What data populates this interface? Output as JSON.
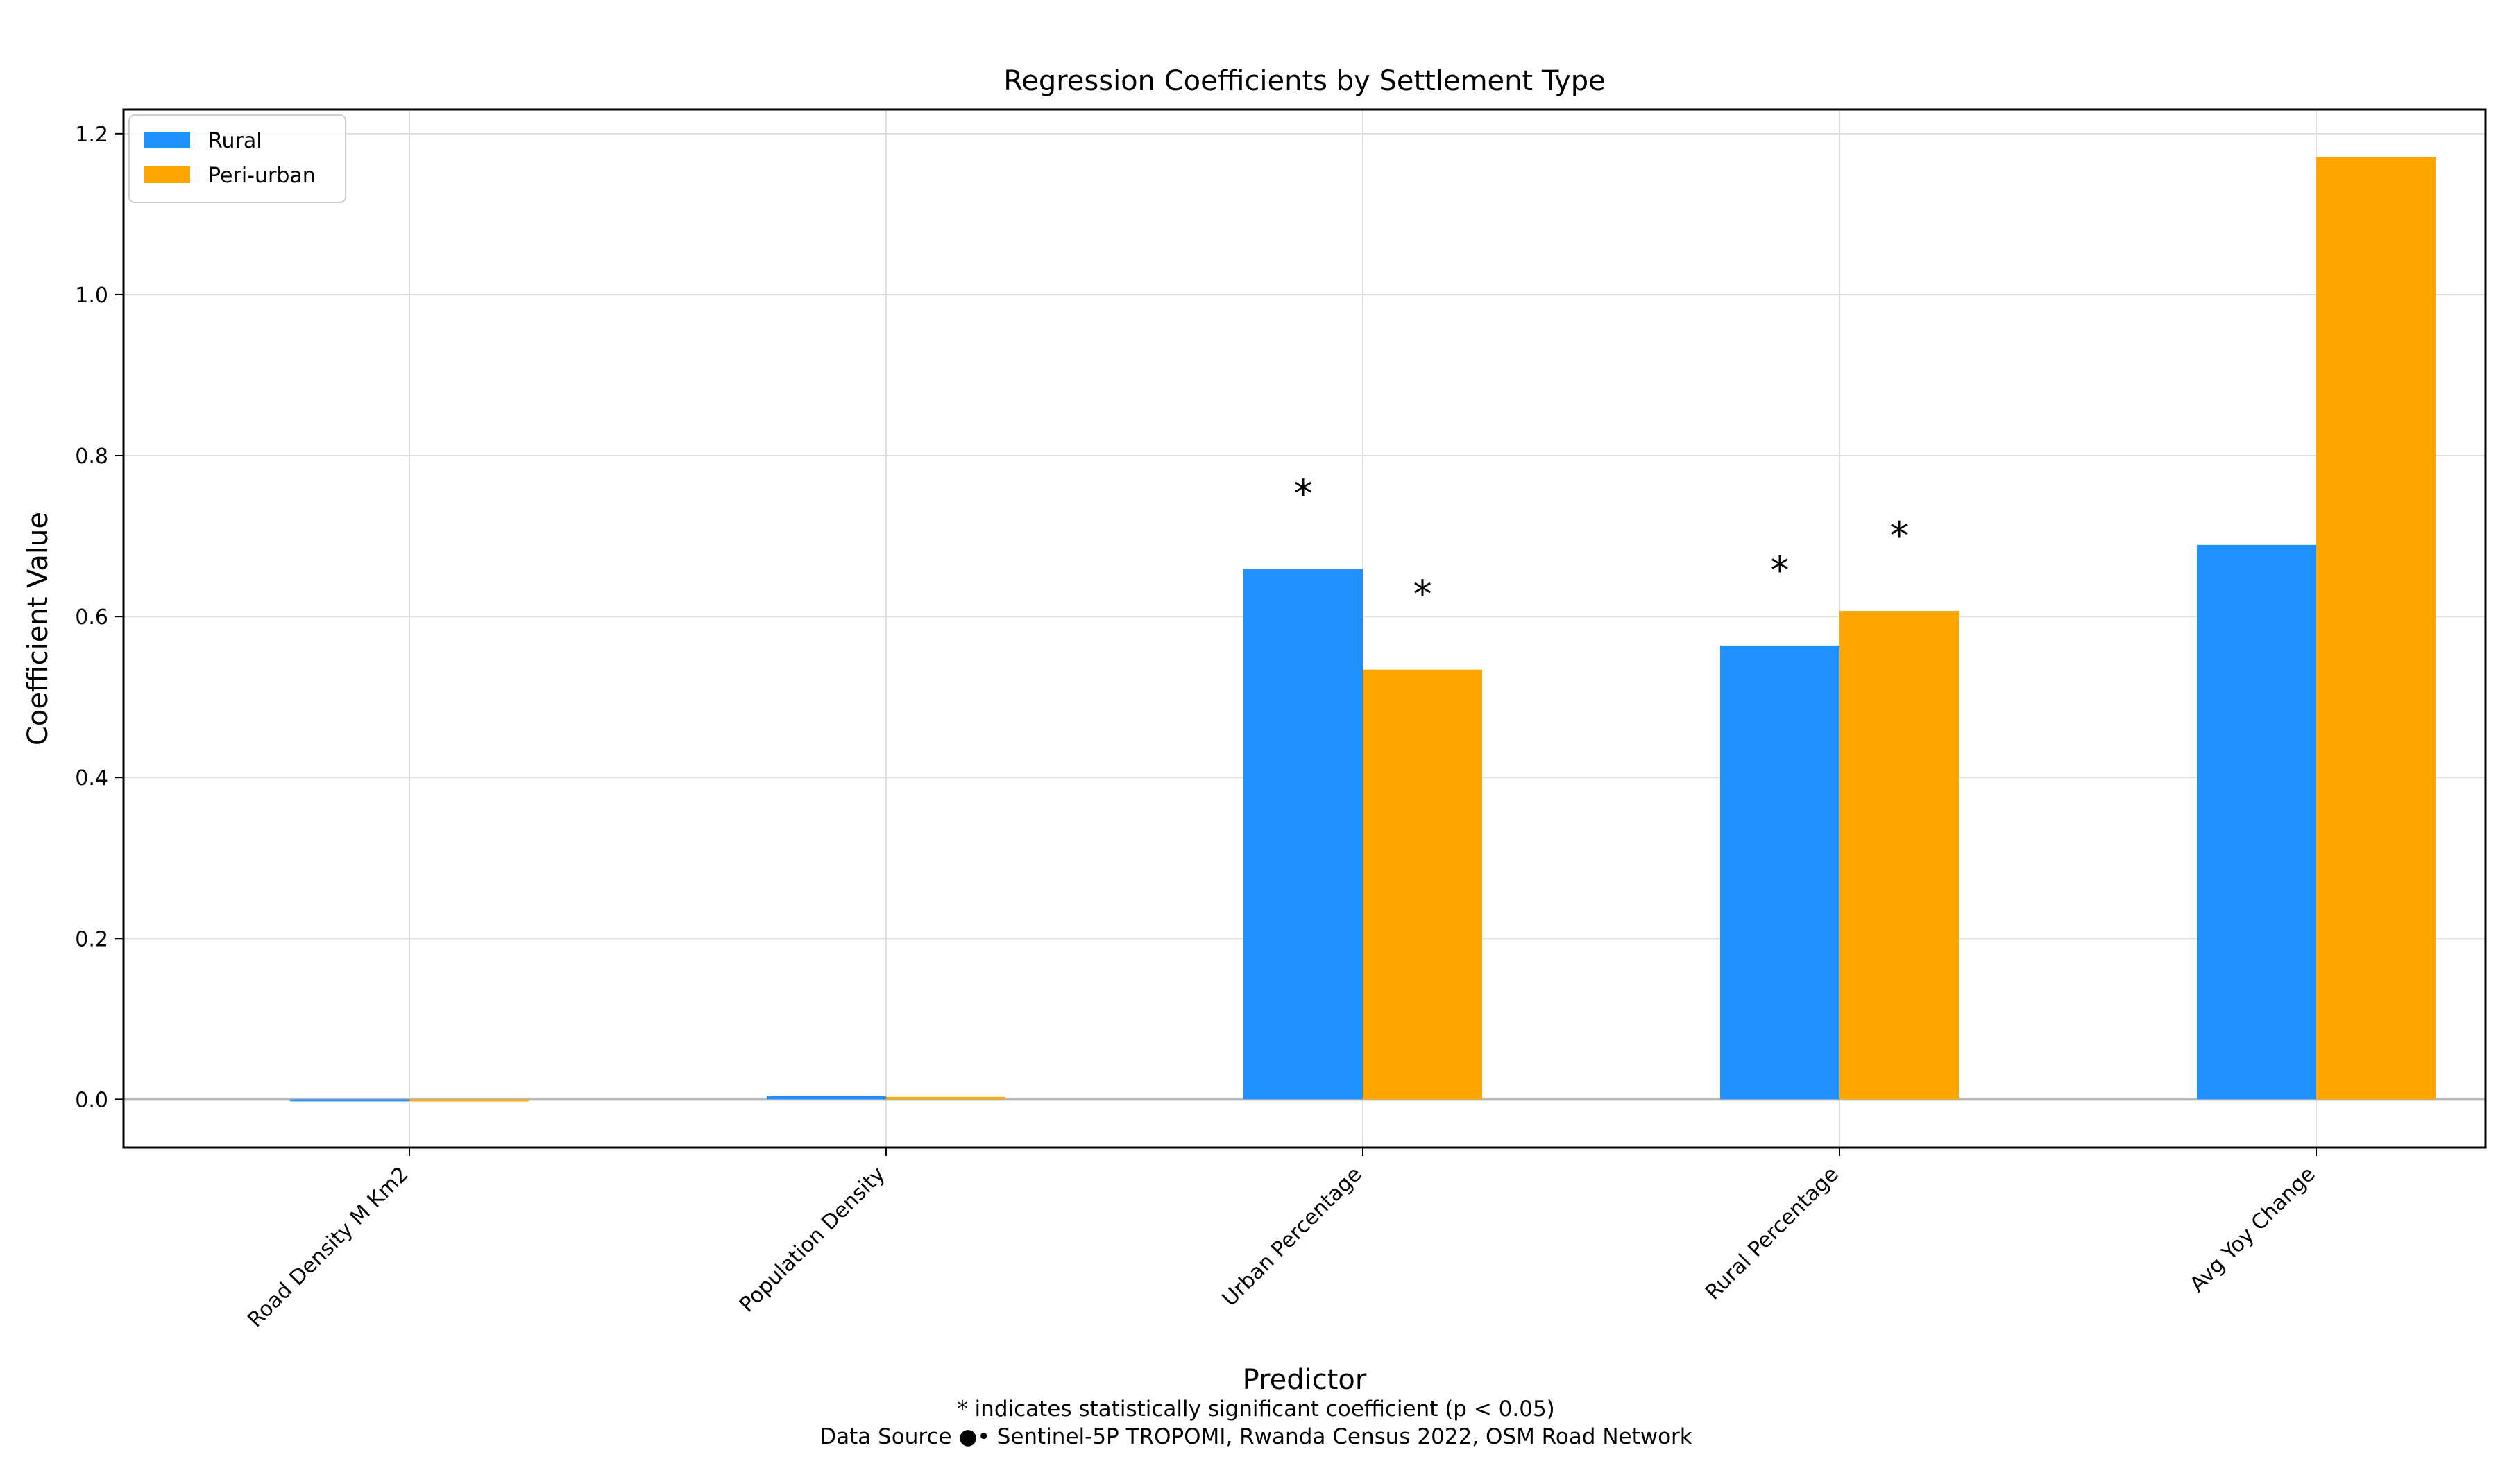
{
  "chart_data": {
    "type": "bar",
    "title": "Regression Coefficients by Settlement Type",
    "xlabel": "Predictor",
    "ylabel": "Coefficient Value",
    "categories": [
      "Road Density M Km2",
      "Population Density",
      "Urban Percentage",
      "Rural Percentage",
      "Avg Yoy Change"
    ],
    "series": [
      {
        "name": "Rural",
        "color": "#1e90ff",
        "values": [
          -0.002,
          0.004,
          0.659,
          0.564,
          0.689
        ],
        "significant": [
          false,
          false,
          true,
          true,
          false
        ]
      },
      {
        "name": "Peri-urban",
        "color": "#ffa500",
        "values": [
          -0.001,
          0.003,
          0.534,
          0.607,
          1.171
        ],
        "significant": [
          false,
          false,
          true,
          true,
          false
        ]
      }
    ],
    "ylim": [
      -0.06,
      1.23
    ],
    "yticks": [
      0.0,
      0.2,
      0.4,
      0.6,
      0.8,
      1.0,
      1.2
    ],
    "ytick_labels": [
      "0.0",
      "0.2",
      "0.4",
      "0.6",
      "0.8",
      "1.0",
      "1.2"
    ],
    "significance_marker": "*",
    "grid": true,
    "legend_position": "top-left",
    "footnotes": [
      "* indicates statistically significant coefficient (p < 0.05)",
      "Data Source ●• Sentinel-5P TROPOMI, Rwanda Census 2022, OSM Road Network"
    ]
  }
}
